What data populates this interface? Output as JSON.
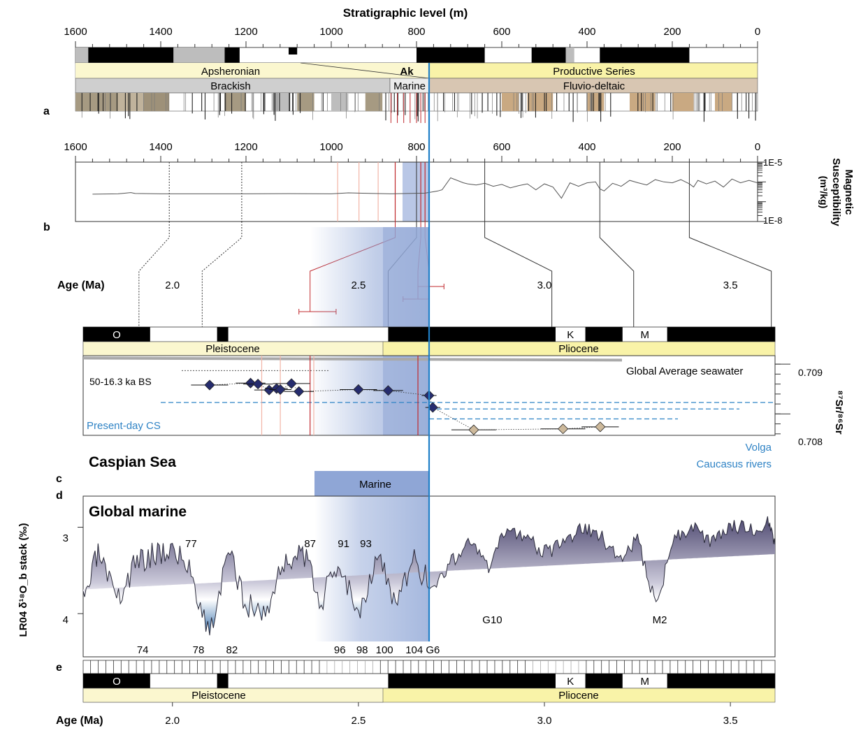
{
  "title": "Stratigraphic level (m)",
  "colors": {
    "marine_band": "#8fa6d6",
    "marine_band_light": "#c6d3ec",
    "blue_line": "#1f7fc7",
    "red": "#c0282d",
    "pink": "#f2b4a6",
    "yellow": "#f9f3a8",
    "yellow_light": "#fbf7cf",
    "brackish": "#cfcfcf",
    "fluvio": "#d8c6b2",
    "diamond_dark": "#262c6e",
    "diamond_tan": "#cdb99b",
    "purple": "#4d4870",
    "gray_line": "#a9a9a9",
    "ref_blue": "#2f83c5"
  },
  "panels": {
    "a": {
      "letter": "a",
      "axis_ticks": [
        "1600",
        "1400",
        "1200",
        "1000",
        "800",
        "600",
        "400",
        "200",
        "0"
      ],
      "group_labels": {
        "apsheronian": "Apsheronian",
        "ak": "Ak",
        "productive": "Productive Series"
      },
      "facies_labels": {
        "brackish": "Brackish",
        "marine": "Marine",
        "fluvio": "Fluvio-deltaic"
      }
    },
    "b": {
      "letter": "b",
      "ylabel_line1": "Magnetic",
      "ylabel_line2": "Susceptibility",
      "ylabel_line3": "(m³/kg)",
      "y_top": "1E-5",
      "y_bottom": "1E-8"
    },
    "c": {
      "letter": "c",
      "age_label": "Age (Ma)",
      "age_ticks": [
        "2.0",
        "2.5",
        "3.0",
        "3.5"
      ],
      "chron_labels": {
        "o": "O",
        "k": "K",
        "m": "M"
      },
      "epochs": {
        "pleistocene": "Pleistocene",
        "pliocene": "Pliocene"
      },
      "title": "Caspian Sea",
      "ylabel": "⁸⁷Sr/⁸⁶Sr",
      "y_ticks": [
        "0.709",
        "0.708"
      ],
      "ref_labels": {
        "global": "Global Average seawater",
        "bs": "50-16.3 ka BS",
        "present": "Present-day CS",
        "volga": "Volga",
        "caucasus": "Caucasus rivers"
      }
    },
    "d": {
      "letter": "d",
      "marine_label": "Marine",
      "title": "Global marine",
      "ylabel": "LR04 δ¹⁸O_b stack (‰)",
      "y_ticks": [
        "3",
        "4"
      ],
      "stage_top": [
        "77",
        "87",
        "91",
        "93"
      ],
      "stage_bottom": [
        "74",
        "78",
        "82",
        "96",
        "98",
        "100",
        "104",
        "G6"
      ],
      "stage_cold": [
        "G10",
        "M2"
      ]
    },
    "e": {
      "letter": "e",
      "chron_labels": {
        "o": "O",
        "k": "K",
        "m": "M"
      },
      "epochs": {
        "pleistocene": "Pleistocene",
        "pliocene": "Pliocene"
      },
      "age_label": "Age (Ma)",
      "age_ticks": [
        "2.0",
        "2.5",
        "3.0",
        "3.5"
      ]
    }
  },
  "chart_data": [
    {
      "type": "line",
      "panel": "b",
      "xlabel": "Stratigraphic level (m)",
      "xlim": [
        1600,
        0
      ],
      "ylim": [
        "1E-8",
        "1E-5"
      ],
      "yscale": "log",
      "x": [
        1560,
        1500,
        1470,
        1460,
        1400,
        1300,
        1200,
        1100,
        1000,
        960,
        900,
        860,
        820,
        780,
        760,
        750,
        740,
        720,
        690,
        680,
        660,
        640,
        620,
        600,
        580,
        560,
        540,
        520,
        500,
        480,
        460,
        440,
        420,
        400,
        380,
        370,
        360,
        340,
        320,
        300,
        280,
        260,
        240,
        220,
        200,
        180,
        160,
        150,
        140,
        120,
        100,
        80,
        60,
        40,
        20,
        0
      ],
      "y": [
        2.4e-07,
        2.5e-07,
        2.9e-07,
        2.6e-07,
        2.5e-07,
        2.5e-07,
        2.5e-07,
        2.55e-07,
        2.5e-07,
        2.8e-07,
        2.6e-07,
        2.5e-07,
        2.6e-07,
        2.7e-07,
        3.2e-07,
        3.5e-07,
        4e-07,
        1.6e-06,
        9e-07,
        8e-07,
        7e-07,
        8.5e-07,
        6e-07,
        7.5e-07,
        5e-07,
        6.5e-07,
        8e-07,
        4e-07,
        8e-07,
        5.5e-07,
        1.5e-07,
        9e-07,
        6e-07,
        9e-07,
        1e-06,
        4.5e-07,
        3.5e-07,
        8.5e-07,
        6e-07,
        1.2e-06,
        9e-07,
        7e-07,
        1.3e-06,
        1e-06,
        9e-07,
        1.3e-06,
        8e-07,
        5.5e-07,
        1.2e-06,
        8e-07,
        1.1e-06,
        5.5e-07,
        1.4e-06,
        9e-07,
        1.2e-06,
        9e-07
      ]
    },
    {
      "type": "scatter",
      "panel": "c",
      "title": "Caspian Sea",
      "xlabel": "Age (Ma)",
      "ylabel": "⁸⁷Sr/⁸⁶Sr",
      "xlim": [
        1.76,
        3.62
      ],
      "ylim": [
        0.70757,
        0.70917
      ],
      "series": [
        {
          "name": "",
          "x": [
            2.1,
            2.21,
            2.23,
            2.26,
            2.28,
            2.29,
            2.32,
            2.34,
            2.5,
            2.58,
            2.69,
            2.7
          ],
          "y": [
            0.70858,
            0.70862,
            0.7086,
            0.70848,
            0.70851,
            0.70849,
            0.70861,
            0.70845,
            0.70849,
            0.70847,
            0.70837,
            0.70813
          ],
          "xerr": [
            0.05,
            0.04,
            0.04,
            0.04,
            0.03,
            0.03,
            0.05,
            0.04,
            0.05,
            0.04,
            0.02,
            0.02
          ]
        },
        {
          "name": "",
          "x": [
            2.81,
            3.05,
            3.15
          ],
          "y": [
            0.70768,
            0.7077,
            0.70774
          ],
          "xerr": [
            0.06,
            0.06,
            0.05
          ]
        }
      ],
      "references": {
        "global_avg": 0.70908,
        "bs": 0.70887,
        "present_cs": 0.70823,
        "volga": 0.7081,
        "caucasus": 0.7079
      }
    },
    {
      "type": "area",
      "panel": "d",
      "title": "Global marine",
      "xlabel": "Age (Ma)",
      "ylabel": "LR04 δ¹⁸O_b stack (‰)",
      "xlim": [
        1.76,
        3.62
      ],
      "ylim": [
        4.5,
        2.64
      ],
      "x": [
        1.76,
        1.8,
        1.85,
        1.9,
        1.95,
        2.0,
        2.05,
        2.1,
        2.15,
        2.2,
        2.25,
        2.3,
        2.35,
        2.4,
        2.45,
        2.5,
        2.55,
        2.6,
        2.65,
        2.7,
        2.75,
        2.8,
        2.85,
        2.9,
        2.95,
        3.0,
        3.05,
        3.1,
        3.15,
        3.2,
        3.25,
        3.3,
        3.35,
        3.4,
        3.45,
        3.5,
        3.55,
        3.6,
        3.62
      ],
      "y": [
        3.9,
        3.3,
        3.9,
        3.4,
        3.3,
        3.25,
        3.5,
        4.25,
        3.3,
        3.9,
        4.0,
        3.4,
        3.3,
        3.85,
        3.4,
        4.0,
        3.3,
        3.9,
        3.4,
        3.7,
        3.4,
        3.15,
        3.5,
        3.0,
        3.1,
        3.3,
        3.2,
        3.0,
        3.1,
        3.35,
        3.15,
        3.9,
        3.1,
        3.0,
        3.2,
        2.95,
        3.05,
        2.95,
        3.2
      ]
    }
  ]
}
